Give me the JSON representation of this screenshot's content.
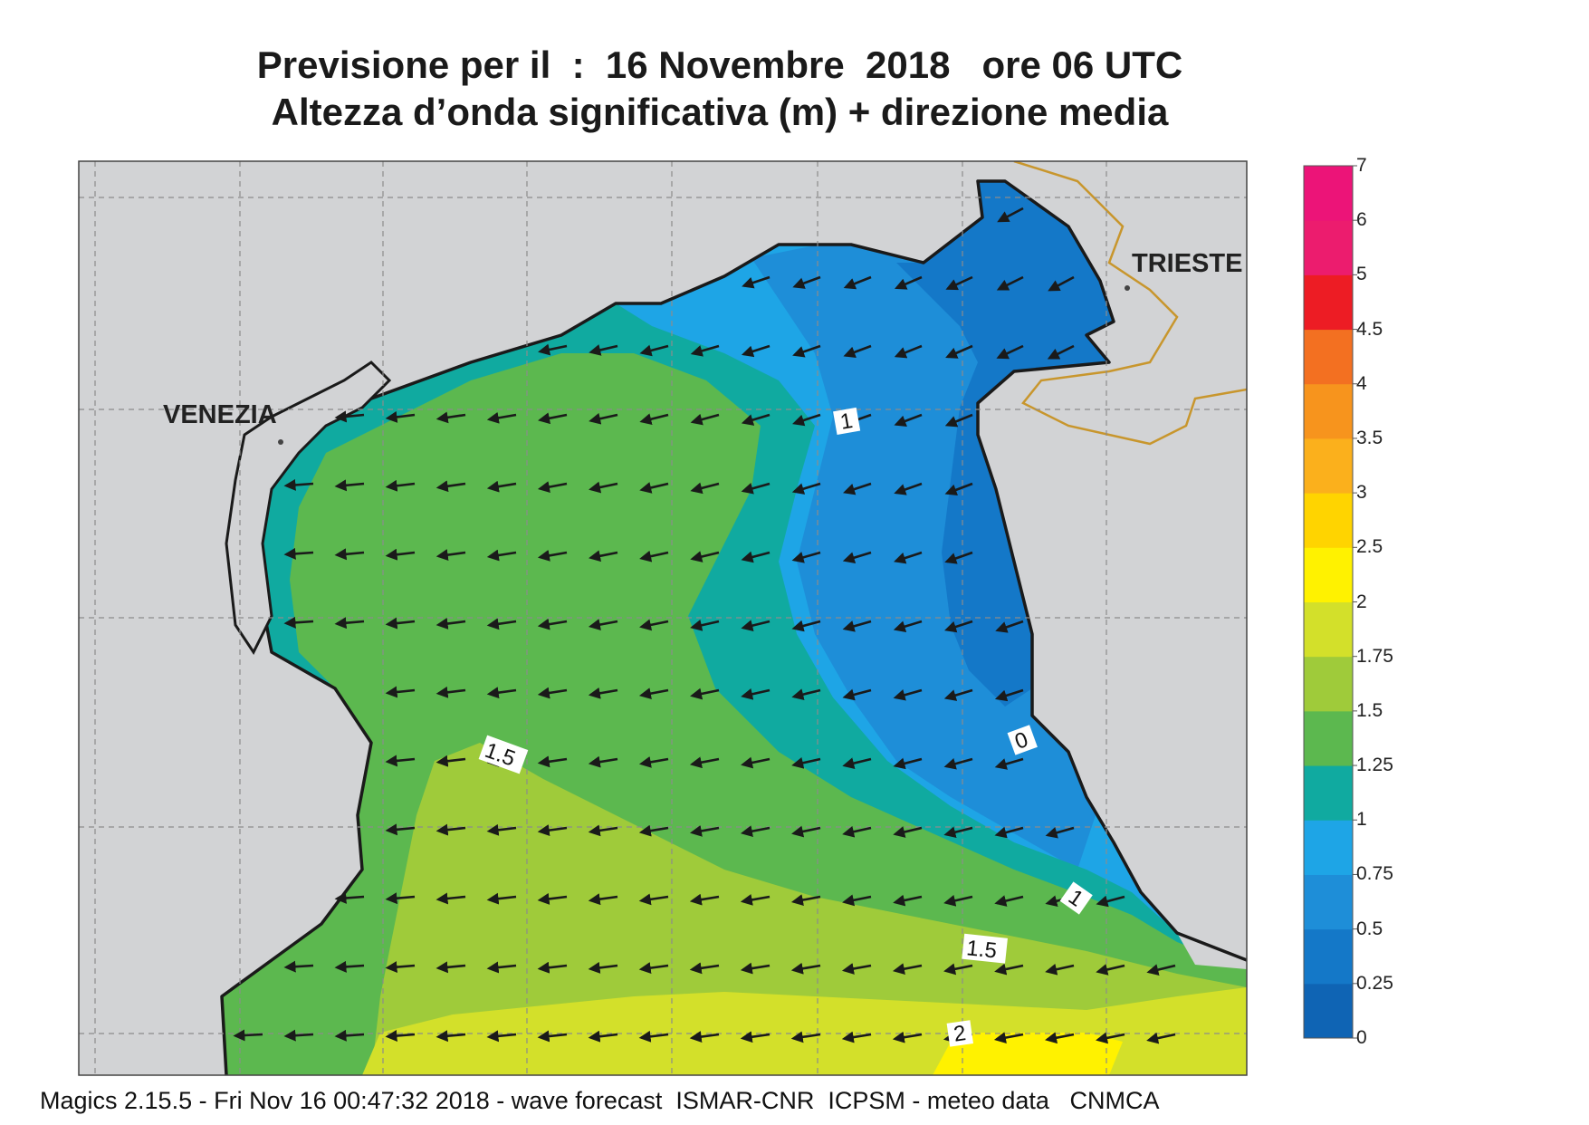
{
  "title": {
    "line1": "Previsione per il  :  16 Novembre  2018   ore 06 UTC",
    "line2": "Altezza d’onda significativa (m) + direzione media"
  },
  "footer": "Magics 2.15.5 - Fri Nov 16 00:47:32 2018 - wave forecast  ISMAR-CNR  ICPSM - meteo data   CNMCA",
  "cities": [
    {
      "name": "VENEZIA"
    },
    {
      "name": "TRIESTE"
    }
  ],
  "contour_labels": [
    "1.5",
    "1",
    "0",
    "1",
    "1.5",
    "2"
  ],
  "legend": {
    "levels": [
      "0",
      "0.25",
      "0.5",
      "0.75",
      "1",
      "1.25",
      "1.5",
      "1.75",
      "2",
      "2.5",
      "3",
      "3.5",
      "4",
      "4.5",
      "5",
      "6",
      "7"
    ],
    "colors": [
      "#0f64b4",
      "#1478c8",
      "#1e8ed8",
      "#1ea5e6",
      "#10aaa0",
      "#5cb84f",
      "#9fcb3a",
      "#d3e02a",
      "#fff200",
      "#ffd400",
      "#fbb01c",
      "#f7941d",
      "#f37021",
      "#ed1c24",
      "#ec1c6e",
      "#ec1478"
    ]
  },
  "wave_field": {
    "unit": "m",
    "mean_direction": "towards south-west / west"
  },
  "colors": {
    "land": "#d2d3d5",
    "coast": "#1a1a1a",
    "border": "#c8962d",
    "grid": "#8c8c8c",
    "arrow": "#1a1a1a"
  }
}
